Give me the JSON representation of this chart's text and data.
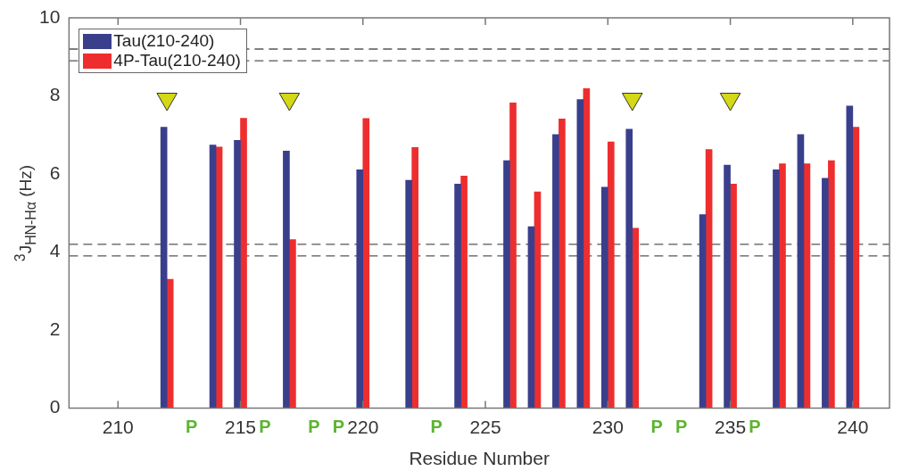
{
  "chart_data": {
    "type": "bar",
    "xlabel": "Residue Number",
    "ylabel": "$^{3}$J$_{HN-Hα}$ (Hz)",
    "x": [
      212,
      214,
      215,
      217,
      220,
      222,
      224,
      226,
      227,
      228,
      229,
      230,
      231,
      234,
      235,
      237,
      238,
      239,
      240
    ],
    "series": [
      {
        "name": "Tau(210-240)",
        "color": "#3a3f8c",
        "values": [
          7.2,
          6.74,
          6.86,
          6.59,
          6.11,
          5.84,
          5.74,
          6.34,
          4.65,
          7.01,
          7.91,
          5.66,
          7.15,
          4.96,
          6.23,
          6.11,
          7.01,
          5.89,
          7.74
        ]
      },
      {
        "name": "4P-Tau(210-240)",
        "color": "#ee2e2e",
        "values": [
          3.3,
          6.69,
          7.43,
          4.32,
          7.42,
          6.68,
          5.95,
          7.82,
          5.54,
          7.41,
          8.19,
          6.82,
          4.61,
          6.63,
          5.74,
          6.26,
          6.26,
          6.34,
          7.2
        ]
      },
      {
        "type": "scatter",
        "color": "#d4d816",
        "marker": "triangle",
        "x": [
          212,
          217,
          231,
          235
        ],
        "values": [
          7.92,
          7.92,
          7.92,
          7.92
        ]
      }
    ],
    "xlim": [
      208,
      241.5
    ],
    "xticks": [
      210,
      {
        "value": 213,
        "label": "P"
      },
      215,
      {
        "value": 216,
        "label": "P"
      },
      {
        "value": 218,
        "label": "P"
      },
      {
        "value": 219,
        "label": "P"
      },
      220,
      {
        "value": 223,
        "label": "P"
      },
      225,
      230,
      {
        "value": 232,
        "label": "P"
      },
      {
        "value": 233,
        "label": "P"
      },
      235,
      {
        "value": 236,
        "label": "P"
      },
      240
    ],
    "ylim": [
      0,
      10
    ],
    "yticks": [
      0,
      2,
      4,
      6,
      8,
      10
    ],
    "ref_lines": [
      {
        "axis": "y",
        "value": 9.2,
        "color": "#555555",
        "line_style": "dashed"
      },
      {
        "axis": "y",
        "value": 8.9,
        "color": "#555555",
        "line_style": "dashed"
      },
      {
        "axis": "y",
        "value": 4.2,
        "color": "#555555",
        "line_style": "dashed"
      },
      {
        "axis": "y",
        "value": 3.9,
        "color": "#555555",
        "line_style": "dashed"
      }
    ],
    "legend": "top left",
    "grid": false
  }
}
